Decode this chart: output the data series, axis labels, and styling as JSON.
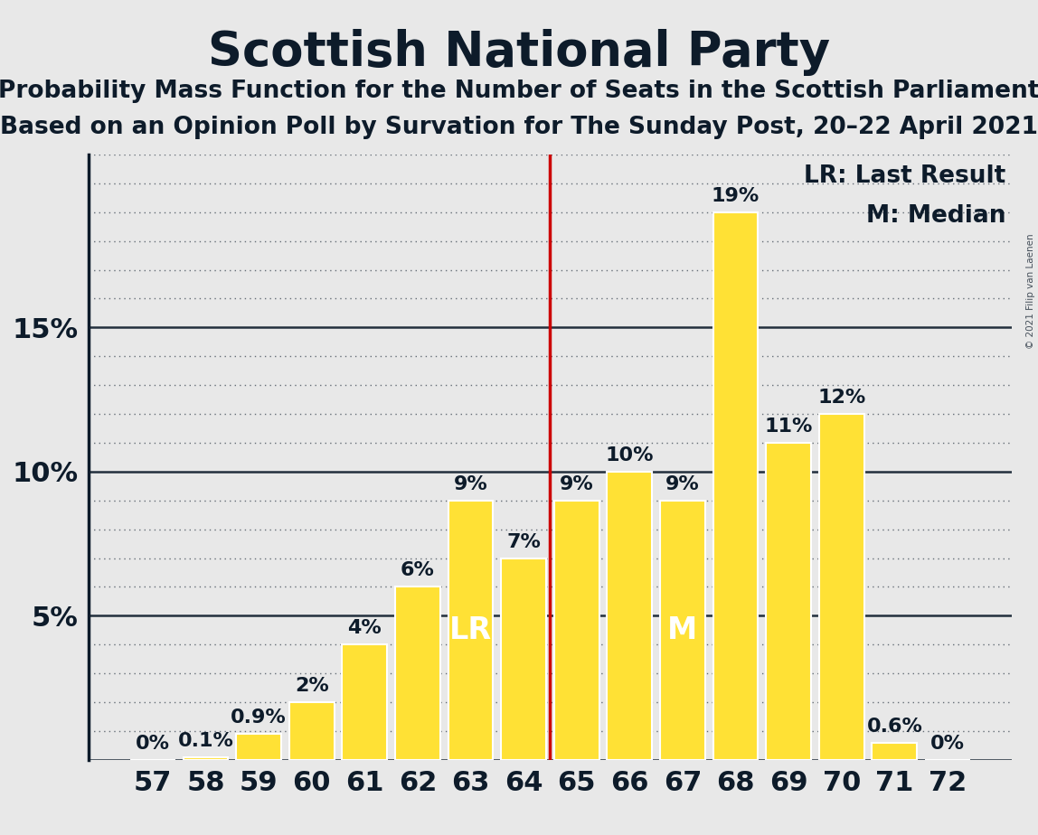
{
  "title": "Scottish National Party",
  "subtitle1": "Probability Mass Function for the Number of Seats in the Scottish Parliament",
  "subtitle2": "Based on an Opinion Poll by Survation for The Sunday Post, 20–22 April 2021",
  "copyright": "© 2021 Filip van Laenen",
  "categories": [
    57,
    58,
    59,
    60,
    61,
    62,
    63,
    64,
    65,
    66,
    67,
    68,
    69,
    70,
    71,
    72
  ],
  "values": [
    0.0,
    0.1,
    0.9,
    2.0,
    4.0,
    6.0,
    9.0,
    7.0,
    9.0,
    10.0,
    9.0,
    19.0,
    11.0,
    12.0,
    0.6,
    0.0
  ],
  "labels": [
    "0%",
    "0.1%",
    "0.9%",
    "2%",
    "4%",
    "6%",
    "9%",
    "7%",
    "9%",
    "10%",
    "9%",
    "19%",
    "11%",
    "12%",
    "0.6%",
    "0%"
  ],
  "bar_color": "#FFE135",
  "bar_edge_color": "#FFFFFF",
  "background_color": "#E8E8E8",
  "axis_color": "#0D1B2A",
  "grid_color": "#0D1B2A",
  "text_color": "#0D1B2A",
  "lr_line_color": "#CC0000",
  "lr_bar": 63,
  "median_bar": 67,
  "lr_label": "LR",
  "median_label": "M",
  "inbar_label_color": "#FFFFFF",
  "inbar_label_fontsize": 24,
  "ylim": [
    0,
    21
  ],
  "yticks": [
    0,
    5,
    10,
    15
  ],
  "ytick_labels": [
    "",
    "5%",
    "10%",
    "15%"
  ],
  "title_fontsize": 38,
  "subtitle_fontsize": 19,
  "axis_label_fontsize": 22,
  "bar_label_fontsize": 16,
  "legend_fontsize": 19
}
